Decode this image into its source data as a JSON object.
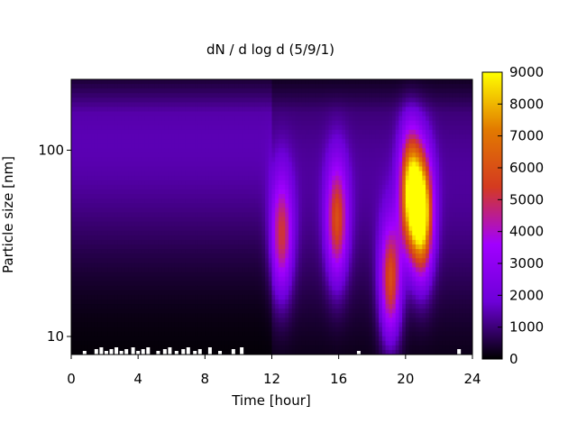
{
  "chart_data": {
    "type": "heatmap",
    "title": "dN / d log d (5/9/1)",
    "xlabel": "Time [hour]",
    "ylabel": "Particle size [nm]",
    "xlim": [
      0,
      24
    ],
    "x_ticks": [
      0,
      4,
      8,
      12,
      16,
      20,
      24
    ],
    "y_scale": "log",
    "ylim": [
      8,
      240
    ],
    "y_ticks": [
      10,
      100
    ],
    "colorbar": {
      "min": 0,
      "max": 9000,
      "ticks": [
        0,
        1000,
        2000,
        3000,
        4000,
        5000,
        6000,
        7000,
        8000,
        9000
      ],
      "colormap": [
        "#000000",
        "#6d00d8",
        "#a100ff",
        "#d43a20",
        "#e27a00",
        "#ffff00"
      ]
    },
    "background_fields": [
      {
        "t0": 0,
        "t1": 12,
        "d": 110,
        "sigma": 0.45,
        "peak": 1500
      },
      {
        "t0": 12,
        "t1": 24,
        "d": 70,
        "sigma": 0.5,
        "peak": 1300
      }
    ],
    "features": [
      {
        "t": 12.6,
        "d": 35,
        "peak": 4200
      },
      {
        "t": 15.9,
        "d": 42,
        "peak": 4800
      },
      {
        "t": 19.1,
        "d": 20,
        "peak": 5200
      },
      {
        "t": 20.3,
        "d": 60,
        "peak": 7600
      },
      {
        "t": 21.0,
        "d": 45,
        "peak": 8200
      }
    ],
    "low_signal_ticks_hours": [
      0.8,
      1.5,
      1.8,
      2.1,
      2.4,
      2.7,
      3.0,
      3.3,
      3.7,
      4.0,
      4.3,
      4.6,
      5.2,
      5.6,
      5.9,
      6.3,
      6.7,
      7.0,
      7.4,
      7.7,
      8.3,
      8.9,
      9.7,
      10.2,
      17.2,
      23.2
    ]
  }
}
